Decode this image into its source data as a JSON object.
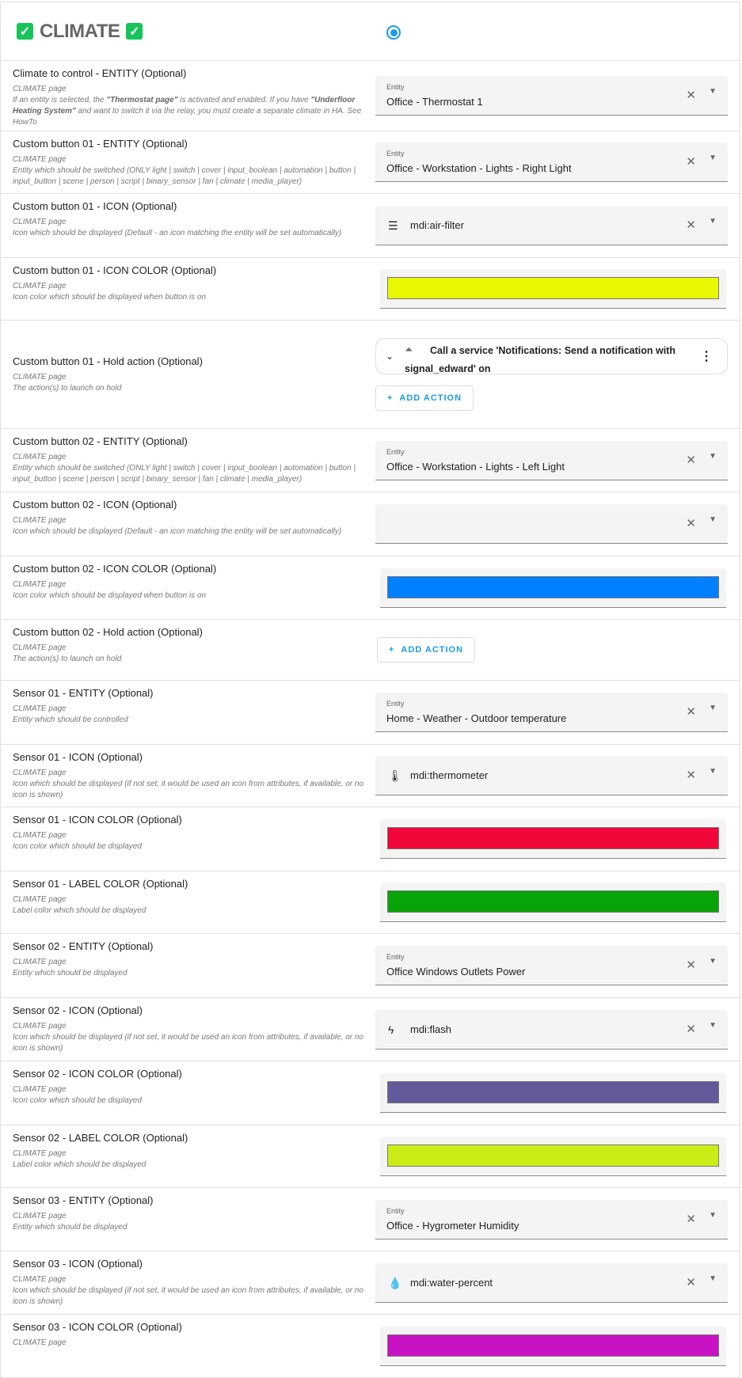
{
  "header": {
    "title": "CLIMATE",
    "selected": true
  },
  "rows": [
    {
      "type": "entity",
      "title": "Climate to control - ENTITY (Optional)",
      "page": "CLIMATE page",
      "desc_html": "If an entity is selected, the <b>\"Thermostat page\"</b> is activated and enabled. If you have <b>\"Underfloor Heating System\"</b> and want to switch it via the relay, you must create a separate climate in HA. See HowTo",
      "label": "Entity",
      "value": "Office - Thermostat 1"
    },
    {
      "type": "entity",
      "title": "Custom button 01 - ENTITY (Optional)",
      "page": "CLIMATE page",
      "desc": "Entity which should be switched (ONLY light | switch | cover | input_boolean | automation | button | input_button | scene | person | script | binary_sensor | fan | climate | media_player)",
      "label": "Entity",
      "value": "Office - Workstation - Lights - Right Light"
    },
    {
      "type": "icon",
      "title": "Custom button 01 - ICON (Optional)",
      "page": "CLIMATE page",
      "desc": "Icon which should be displayed (Default - an icon matching the entity will be set automatically)",
      "value": "mdi:air-filter",
      "icon": "air-filter-icon",
      "glyph": "☰"
    },
    {
      "type": "color",
      "title": "Custom button 01 - ICON COLOR (Optional)",
      "page": "CLIMATE page",
      "desc": "Icon color which should be displayed when button is on",
      "color": "#e8f800"
    },
    {
      "type": "action",
      "title": "Custom button 01 - Hold action (Optional)",
      "page": "CLIMATE page",
      "desc": "The action(s) to launch on hold",
      "action_text": "Call a service 'Notifications: Send a notification with signal_edward' on",
      "add_label": "ADD ACTION"
    },
    {
      "type": "entity",
      "title": "Custom button 02 - ENTITY (Optional)",
      "page": "CLIMATE page",
      "desc": "Entity which should be switched (ONLY light | switch | cover | input_boolean | automation | button | input_button | scene | person | script | binary_sensor | fan | climate | media_player)",
      "label": "Entity",
      "value": "Office - Workstation - Lights - Left Light"
    },
    {
      "type": "icon",
      "title": "Custom button 02 - ICON (Optional)",
      "page": "CLIMATE page",
      "desc": "Icon which should be displayed (Default - an icon matching the entity will be set automatically)",
      "value": ""
    },
    {
      "type": "color",
      "title": "Custom button 02 - ICON COLOR (Optional)",
      "page": "CLIMATE page",
      "desc": "Icon color which should be displayed when button is on",
      "color": "#0080ff"
    },
    {
      "type": "add",
      "title": "Custom button 02 - Hold action (Optional)",
      "page": "CLIMATE page",
      "desc": "The action(s) to launch on hold",
      "add_label": "ADD ACTION"
    },
    {
      "type": "entity",
      "title": "Sensor 01 - ENTITY (Optional)",
      "page": "CLIMATE page",
      "desc": "Entity which should be controlled",
      "label": "Entity",
      "value": "Home - Weather - Outdoor temperature"
    },
    {
      "type": "icon",
      "title": "Sensor 01 - ICON (Optional)",
      "page": "CLIMATE page",
      "desc": "Icon which should be displayed (if not set, it would be used an icon from attributes, if available, or no icon is shown)",
      "value": "mdi:thermometer",
      "icon": "thermometer-icon",
      "glyph": "🌡"
    },
    {
      "type": "color",
      "title": "Sensor 01 - ICON COLOR (Optional)",
      "page": "CLIMATE page",
      "desc": "Icon color which should be displayed",
      "color": "#f00638"
    },
    {
      "type": "color",
      "title": "Sensor 01 - LABEL COLOR (Optional)",
      "page": "CLIMATE page",
      "desc": "Label color which should be displayed",
      "color": "#08a40a"
    },
    {
      "type": "entity",
      "title": "Sensor 02 - ENTITY (Optional)",
      "page": "CLIMATE page",
      "desc": "Entity which should be displayed",
      "label": "Entity",
      "value": "Office Windows Outlets Power"
    },
    {
      "type": "icon",
      "title": "Sensor 02 - ICON (Optional)",
      "page": "CLIMATE page",
      "desc": "Icon which should be displayed (if not set, it would be used an icon from attributes, if available, or no icon is shown)",
      "value": "mdi:flash",
      "icon": "flash-icon",
      "glyph": "ϟ"
    },
    {
      "type": "color",
      "title": "Sensor 02 - ICON COLOR (Optional)",
      "page": "CLIMATE page",
      "desc": "Icon color which should be displayed",
      "color": "#625a9a"
    },
    {
      "type": "color",
      "title": "Sensor 02 - LABEL COLOR (Optional)",
      "page": "CLIMATE page",
      "desc": "Label color which should be displayed",
      "color": "#cbec16"
    },
    {
      "type": "entity",
      "title": "Sensor 03 - ENTITY (Optional)",
      "page": "CLIMATE page",
      "desc": "Entity which should be displayed",
      "label": "Entity",
      "value": "Office - Hygrometer Humidity"
    },
    {
      "type": "icon",
      "title": "Sensor 03 - ICON (Optional)",
      "page": "CLIMATE page",
      "desc": "Icon which should be displayed (if not set, it would be used an icon from attributes, if available, or no icon is shown)",
      "value": "mdi:water-percent",
      "icon": "water-percent-icon",
      "glyph": "💧"
    },
    {
      "type": "color",
      "title": "Sensor 03 - ICON COLOR (Optional)",
      "page": "CLIMATE page",
      "desc": "",
      "color": "#c813c4"
    }
  ]
}
